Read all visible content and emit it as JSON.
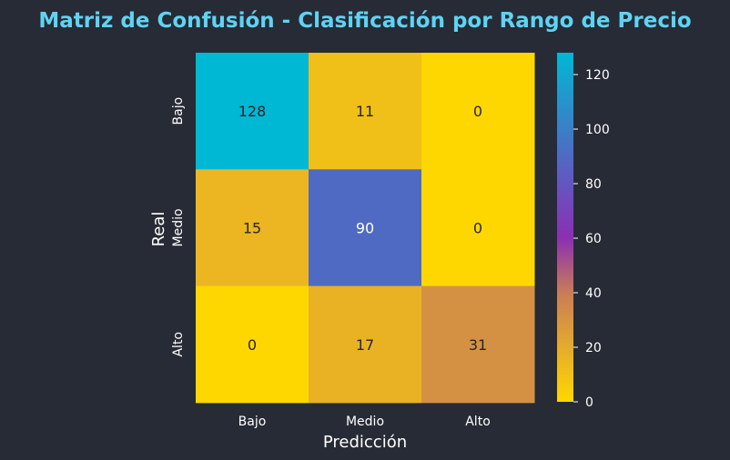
{
  "chart_data": {
    "type": "heatmap",
    "title": "Matriz de Confusión - Clasificación por Rango de Precio",
    "xlabel": "Predicción",
    "ylabel": "Real",
    "x_categories": [
      "Bajo",
      "Medio",
      "Alto"
    ],
    "y_categories": [
      "Bajo",
      "Medio",
      "Alto"
    ],
    "values": [
      [
        128,
        11,
        0
      ],
      [
        15,
        90,
        0
      ],
      [
        0,
        17,
        31
      ]
    ],
    "colorbar": {
      "range": [
        0,
        128
      ],
      "ticks": [
        "0",
        "20",
        "40",
        "60",
        "80",
        "100",
        "120"
      ],
      "colors": [
        "#ffd700",
        "#e4aa2d",
        "#c97d56",
        "#8b2fb3",
        "#5b5fc1",
        "#00b8d4"
      ]
    }
  },
  "colors": {
    "background": "#272b35",
    "title": "#5fd3f3",
    "text_light": "#ffffff",
    "text_dark": "#262626"
  }
}
